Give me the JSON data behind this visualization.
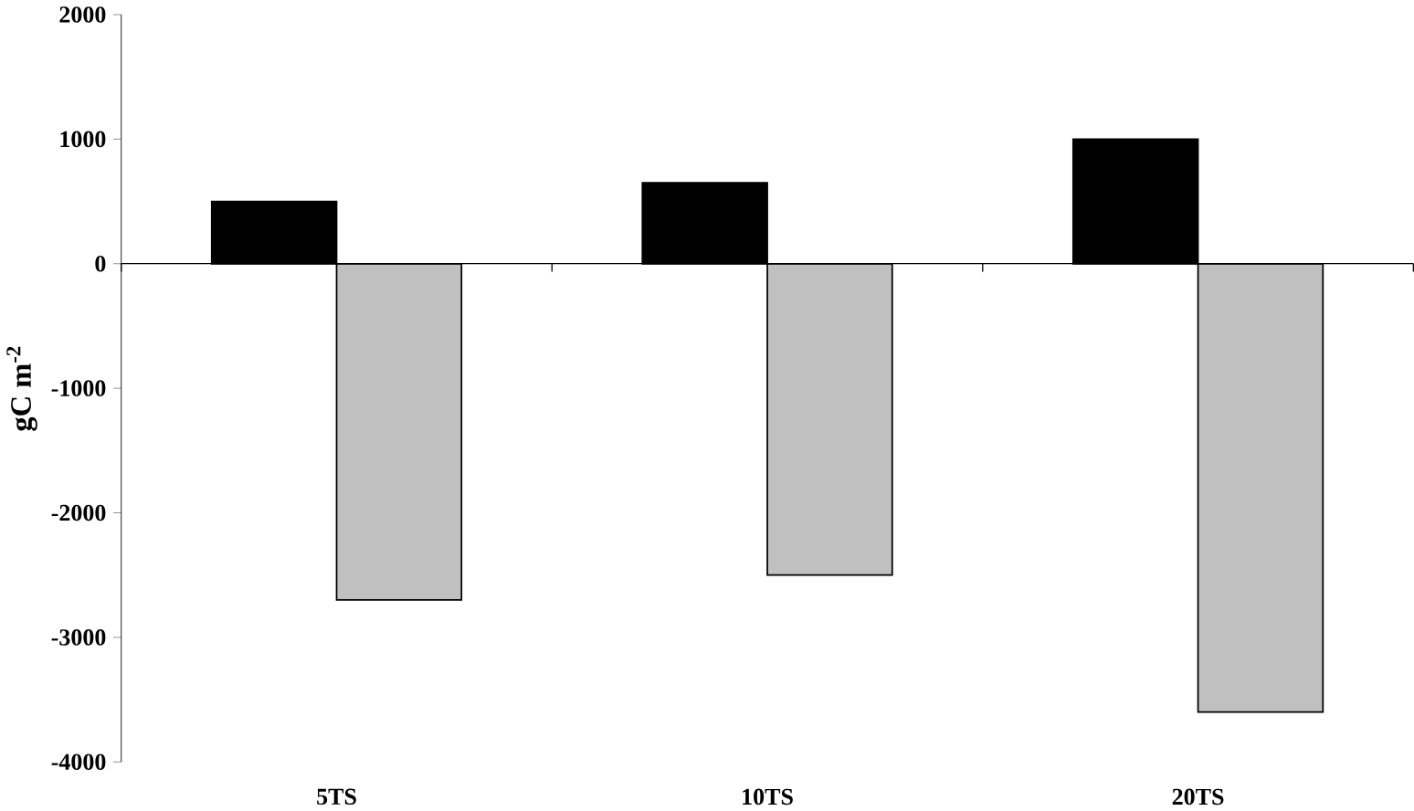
{
  "chart_data": {
    "type": "bar",
    "ylabel": "gC m$^{-2}$",
    "categories": [
      "5TS",
      "10TS",
      "20TS"
    ],
    "series": [
      {
        "color": "#000000",
        "values": [
          500,
          650,
          1000
        ]
      },
      {
        "color": "#c0c0c0",
        "values": [
          -2700,
          -2500,
          -3600
        ]
      }
    ],
    "ylim": [
      -4000,
      2000
    ],
    "yticks": [
      -4000,
      -3000,
      -2000,
      -1000,
      0,
      1000,
      2000
    ]
  }
}
